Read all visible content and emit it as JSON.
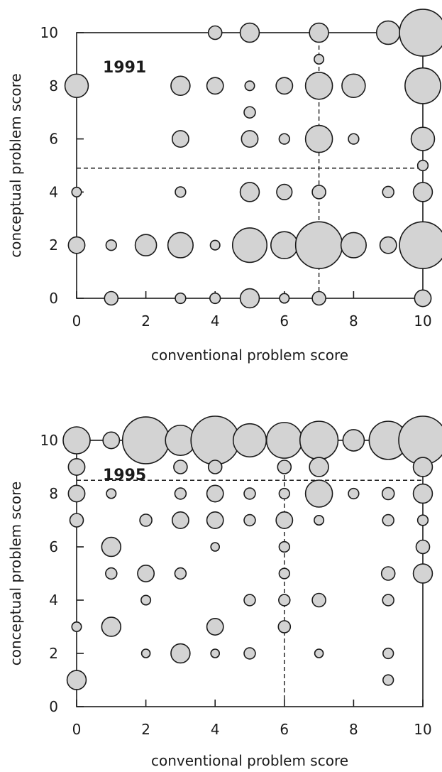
{
  "chart_data": [
    {
      "type": "scatter",
      "title": "1991",
      "xlabel": "conventional problem score",
      "ylabel": "conceptual problem score",
      "xlim": [
        0,
        10
      ],
      "ylim": [
        0,
        10
      ],
      "xticks": [
        "0",
        "2",
        "4",
        "6",
        "8",
        "10"
      ],
      "yticks": [
        "0",
        "2",
        "4",
        "6",
        "8",
        "10"
      ],
      "reference_lines": {
        "x": 7,
        "y": 4.9
      },
      "bubble_size_encodes": "relative number of students at each (x, y) score pair",
      "points": [
        {
          "x": 4,
          "y": 10,
          "size": 1
        },
        {
          "x": 5,
          "y": 10,
          "size": 2
        },
        {
          "x": 7,
          "y": 10,
          "size": 2
        },
        {
          "x": 9,
          "y": 10,
          "size": 3
        },
        {
          "x": 10,
          "y": 10,
          "size": 12
        },
        {
          "x": 7,
          "y": 9,
          "size": 0.5
        },
        {
          "x": 0,
          "y": 8,
          "size": 3
        },
        {
          "x": 3,
          "y": 8,
          "size": 2
        },
        {
          "x": 4,
          "y": 8,
          "size": 1.5
        },
        {
          "x": 5,
          "y": 8,
          "size": 0.5
        },
        {
          "x": 6,
          "y": 8,
          "size": 1.5
        },
        {
          "x": 7,
          "y": 8,
          "size": 4
        },
        {
          "x": 8,
          "y": 8,
          "size": 3
        },
        {
          "x": 10,
          "y": 8,
          "size": 7
        },
        {
          "x": 5,
          "y": 7,
          "size": 0.7
        },
        {
          "x": 3,
          "y": 6,
          "size": 1.5
        },
        {
          "x": 5,
          "y": 6,
          "size": 1.5
        },
        {
          "x": 6,
          "y": 6,
          "size": 0.6
        },
        {
          "x": 7,
          "y": 6,
          "size": 4
        },
        {
          "x": 8,
          "y": 6,
          "size": 0.6
        },
        {
          "x": 10,
          "y": 6,
          "size": 3
        },
        {
          "x": 10,
          "y": 5,
          "size": 0.6
        },
        {
          "x": 0,
          "y": 4,
          "size": 0.5
        },
        {
          "x": 3,
          "y": 4,
          "size": 0.6
        },
        {
          "x": 5,
          "y": 4,
          "size": 2
        },
        {
          "x": 6,
          "y": 4,
          "size": 1.3
        },
        {
          "x": 7,
          "y": 4,
          "size": 1
        },
        {
          "x": 9,
          "y": 4,
          "size": 0.7
        },
        {
          "x": 10,
          "y": 4,
          "size": 2
        },
        {
          "x": 0,
          "y": 2,
          "size": 1.5
        },
        {
          "x": 1,
          "y": 2,
          "size": 0.6
        },
        {
          "x": 2,
          "y": 2,
          "size": 2.5
        },
        {
          "x": 3,
          "y": 2,
          "size": 3.5
        },
        {
          "x": 4,
          "y": 2,
          "size": 0.5
        },
        {
          "x": 5,
          "y": 2,
          "size": 6.5
        },
        {
          "x": 6,
          "y": 2,
          "size": 4
        },
        {
          "x": 7,
          "y": 2,
          "size": 12
        },
        {
          "x": 8,
          "y": 2,
          "size": 3.5
        },
        {
          "x": 9,
          "y": 2,
          "size": 1.5
        },
        {
          "x": 10,
          "y": 2,
          "size": 12
        },
        {
          "x": 1,
          "y": 0,
          "size": 1
        },
        {
          "x": 3,
          "y": 0,
          "size": 0.6
        },
        {
          "x": 4,
          "y": 0,
          "size": 0.6
        },
        {
          "x": 5,
          "y": 0,
          "size": 2
        },
        {
          "x": 6,
          "y": 0,
          "size": 0.5
        },
        {
          "x": 7,
          "y": 0,
          "size": 1
        },
        {
          "x": 10,
          "y": 0,
          "size": 1.5
        }
      ]
    },
    {
      "type": "scatter",
      "title": "1995",
      "xlabel": "conventional problem score",
      "ylabel": "conceptual problem score",
      "xlim": [
        0,
        10
      ],
      "ylim": [
        0,
        10
      ],
      "xticks": [
        "0",
        "2",
        "4",
        "6",
        "8",
        "10"
      ],
      "yticks": [
        "0",
        "2",
        "4",
        "6",
        "8",
        "10"
      ],
      "reference_lines": {
        "x": 6,
        "y": 8.5
      },
      "bubble_size_encodes": "relative number of students at each (x, y) score pair",
      "points": [
        {
          "x": 0,
          "y": 10,
          "size": 4
        },
        {
          "x": 1,
          "y": 10,
          "size": 1.5
        },
        {
          "x": 2,
          "y": 10,
          "size": 12
        },
        {
          "x": 3,
          "y": 10,
          "size": 5
        },
        {
          "x": 4,
          "y": 10,
          "size": 15
        },
        {
          "x": 5,
          "y": 10,
          "size": 6
        },
        {
          "x": 6,
          "y": 10,
          "size": 7
        },
        {
          "x": 7,
          "y": 10,
          "size": 8
        },
        {
          "x": 8,
          "y": 10,
          "size": 2.5
        },
        {
          "x": 9,
          "y": 10,
          "size": 8
        },
        {
          "x": 10,
          "y": 10,
          "size": 15
        },
        {
          "x": 0,
          "y": 9,
          "size": 1.5
        },
        {
          "x": 3,
          "y": 9,
          "size": 1
        },
        {
          "x": 4,
          "y": 9,
          "size": 1
        },
        {
          "x": 6,
          "y": 9,
          "size": 1
        },
        {
          "x": 7,
          "y": 9,
          "size": 2
        },
        {
          "x": 10,
          "y": 9,
          "size": 2
        },
        {
          "x": 0,
          "y": 8,
          "size": 1.5
        },
        {
          "x": 1,
          "y": 8,
          "size": 0.5
        },
        {
          "x": 3,
          "y": 8,
          "size": 0.7
        },
        {
          "x": 4,
          "y": 8,
          "size": 1.5
        },
        {
          "x": 5,
          "y": 8,
          "size": 0.7
        },
        {
          "x": 6,
          "y": 8,
          "size": 0.6
        },
        {
          "x": 7,
          "y": 8,
          "size": 4
        },
        {
          "x": 8,
          "y": 8,
          "size": 0.6
        },
        {
          "x": 9,
          "y": 8,
          "size": 0.8
        },
        {
          "x": 10,
          "y": 8,
          "size": 2
        },
        {
          "x": 0,
          "y": 7,
          "size": 1
        },
        {
          "x": 2,
          "y": 7,
          "size": 0.8
        },
        {
          "x": 3,
          "y": 7,
          "size": 1.5
        },
        {
          "x": 4,
          "y": 7,
          "size": 1.5
        },
        {
          "x": 5,
          "y": 7,
          "size": 0.7
        },
        {
          "x": 6,
          "y": 7,
          "size": 1.5
        },
        {
          "x": 7,
          "y": 7,
          "size": 0.5
        },
        {
          "x": 9,
          "y": 7,
          "size": 0.7
        },
        {
          "x": 10,
          "y": 7,
          "size": 0.6
        },
        {
          "x": 1,
          "y": 6,
          "size": 2
        },
        {
          "x": 4,
          "y": 6,
          "size": 0.4
        },
        {
          "x": 6,
          "y": 6,
          "size": 0.6
        },
        {
          "x": 10,
          "y": 6,
          "size": 1
        },
        {
          "x": 1,
          "y": 5,
          "size": 0.7
        },
        {
          "x": 2,
          "y": 5,
          "size": 1.5
        },
        {
          "x": 3,
          "y": 5,
          "size": 0.7
        },
        {
          "x": 6,
          "y": 5,
          "size": 0.6
        },
        {
          "x": 9,
          "y": 5,
          "size": 1
        },
        {
          "x": 10,
          "y": 5,
          "size": 2
        },
        {
          "x": 2,
          "y": 4,
          "size": 0.5
        },
        {
          "x": 5,
          "y": 4,
          "size": 0.7
        },
        {
          "x": 6,
          "y": 4,
          "size": 0.7
        },
        {
          "x": 7,
          "y": 4,
          "size": 1
        },
        {
          "x": 9,
          "y": 4,
          "size": 0.7
        },
        {
          "x": 0,
          "y": 3,
          "size": 0.5
        },
        {
          "x": 1,
          "y": 3,
          "size": 2
        },
        {
          "x": 4,
          "y": 3,
          "size": 1.5
        },
        {
          "x": 6,
          "y": 3,
          "size": 0.8
        },
        {
          "x": 2,
          "y": 2,
          "size": 0.4
        },
        {
          "x": 3,
          "y": 2,
          "size": 2
        },
        {
          "x": 4,
          "y": 2,
          "size": 0.4
        },
        {
          "x": 5,
          "y": 2,
          "size": 0.7
        },
        {
          "x": 7,
          "y": 2,
          "size": 0.4
        },
        {
          "x": 9,
          "y": 2,
          "size": 0.6
        },
        {
          "x": 0,
          "y": 1,
          "size": 2
        },
        {
          "x": 9,
          "y": 1,
          "size": 0.6
        }
      ]
    }
  ]
}
